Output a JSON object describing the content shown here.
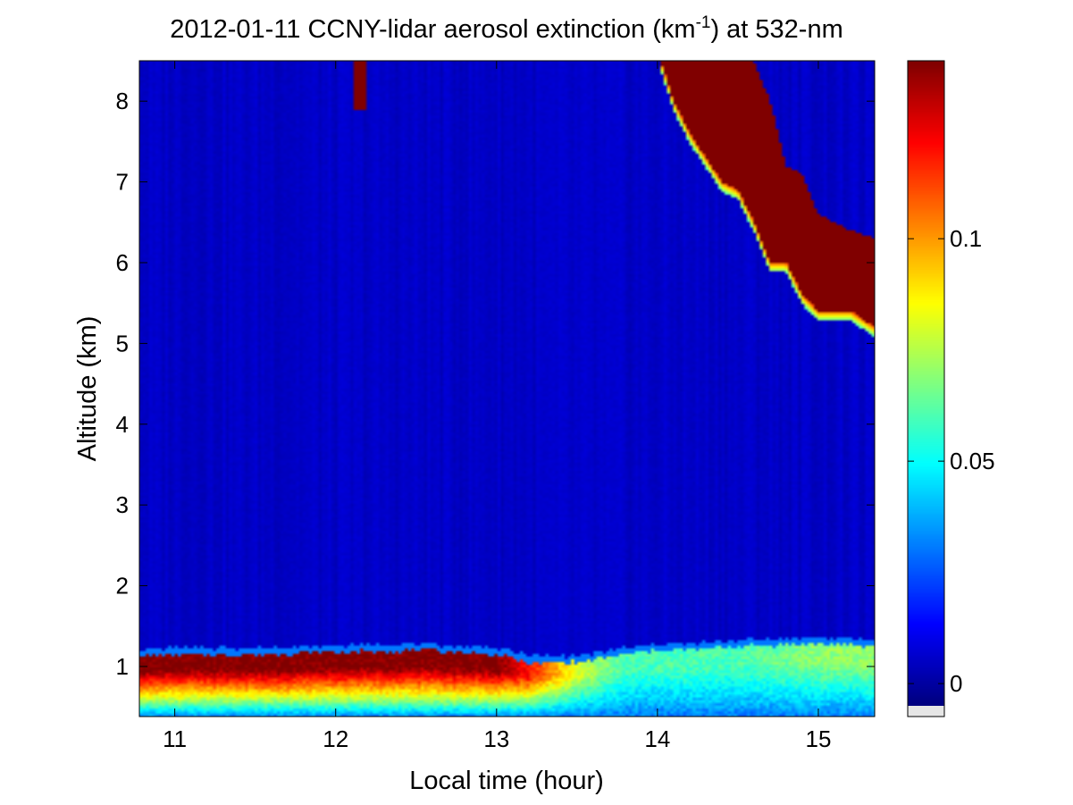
{
  "chart_data": {
    "type": "heatmap",
    "title": {
      "main": "2012-01-11 CCNY-lidar aerosol extinction (km",
      "superscript": "-1",
      "rest": ") at 532-nm"
    },
    "xlabel": "Local time (hour)",
    "ylabel": "Altitude (km)",
    "xlim": [
      10.78,
      15.35
    ],
    "ylim": [
      0.38,
      8.5
    ],
    "x_ticks": [
      11,
      12,
      13,
      14,
      15
    ],
    "y_ticks": [
      1,
      2,
      3,
      4,
      5,
      6,
      7,
      8
    ],
    "colorbar": {
      "colormap": "jet",
      "range": [
        -0.005,
        0.14
      ],
      "ticks": [
        0,
        0.05,
        0.1
      ],
      "tick_labels": [
        "0",
        "0.05",
        "0.1"
      ]
    },
    "background_value": 0.005,
    "features": {
      "boundary_layer": {
        "x": [
          10.78,
          11.0,
          11.5,
          12.0,
          12.5,
          13.0,
          13.2,
          13.5,
          13.8,
          14.0,
          14.2,
          14.5,
          15.0,
          15.35
        ],
        "top_km": [
          1.13,
          1.15,
          1.15,
          1.18,
          1.2,
          1.15,
          1.05,
          1.05,
          1.15,
          1.2,
          1.2,
          1.25,
          1.28,
          1.25
        ],
        "peak_extinction": [
          0.14,
          0.14,
          0.14,
          0.14,
          0.14,
          0.14,
          0.12,
          0.08,
          0.06,
          0.06,
          0.06,
          0.06,
          0.07,
          0.07
        ]
      },
      "cloud_main": {
        "x": [
          14.02,
          14.1,
          14.2,
          14.3,
          14.4,
          14.5,
          14.6,
          14.7,
          14.8,
          14.9,
          15.0,
          15.1,
          15.2,
          15.35
        ],
        "base_km": [
          8.5,
          8.0,
          7.6,
          7.3,
          7.0,
          6.9,
          6.5,
          6.0,
          6.0,
          5.6,
          5.4,
          5.4,
          5.4,
          5.2
        ],
        "top_km": [
          8.5,
          8.5,
          8.5,
          8.5,
          8.5,
          8.5,
          8.5,
          8.0,
          7.2,
          7.1,
          6.6,
          6.5,
          6.4,
          6.3
        ],
        "extinction": 0.14
      },
      "cloud_small": {
        "x": [
          12.12,
          12.2
        ],
        "base_km": [
          7.9,
          7.9
        ],
        "top_km": [
          8.5,
          8.5
        ],
        "extinction": 0.14
      }
    }
  }
}
